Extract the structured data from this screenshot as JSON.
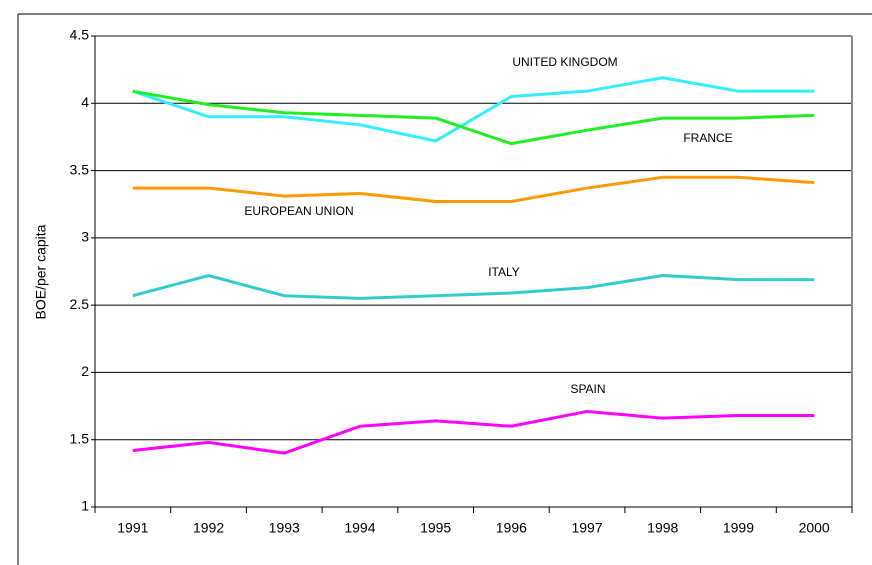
{
  "chart_data": {
    "type": "line",
    "y_label": "BOE/per capita",
    "categories": [
      "1991",
      "1992",
      "1993",
      "1994",
      "1995",
      "1996",
      "1997",
      "1998",
      "1999",
      "2000"
    ],
    "series": [
      {
        "name": "UNITED KINGDOM",
        "color": "#33eeff",
        "values": [
          4.09,
          3.9,
          3.9,
          3.84,
          3.72,
          4.05,
          4.09,
          4.19,
          4.09,
          4.09
        ]
      },
      {
        "name": "FRANCE",
        "color": "#22ee22",
        "values": [
          4.09,
          3.99,
          3.93,
          3.91,
          3.89,
          3.7,
          3.8,
          3.89,
          3.89,
          3.91
        ]
      },
      {
        "name": "EUROPEAN UNION",
        "color": "#ff9900",
        "values": [
          3.37,
          3.37,
          3.31,
          3.33,
          3.27,
          3.27,
          3.37,
          3.45,
          3.45,
          3.41
        ]
      },
      {
        "name": "ITALY",
        "color": "#33cccc",
        "values": [
          2.57,
          2.72,
          2.57,
          2.55,
          2.57,
          2.59,
          2.63,
          2.72,
          2.69,
          2.69
        ]
      },
      {
        "name": "SPAIN",
        "color": "#ff00ff",
        "values": [
          1.42,
          1.48,
          1.4,
          1.6,
          1.64,
          1.6,
          1.71,
          1.66,
          1.68,
          1.68
        ]
      }
    ],
    "ylim": [
      1,
      4.5
    ],
    "yticks": [
      1,
      1.5,
      2,
      2.5,
      3,
      3.5,
      4,
      4.5
    ],
    "grid": true
  }
}
